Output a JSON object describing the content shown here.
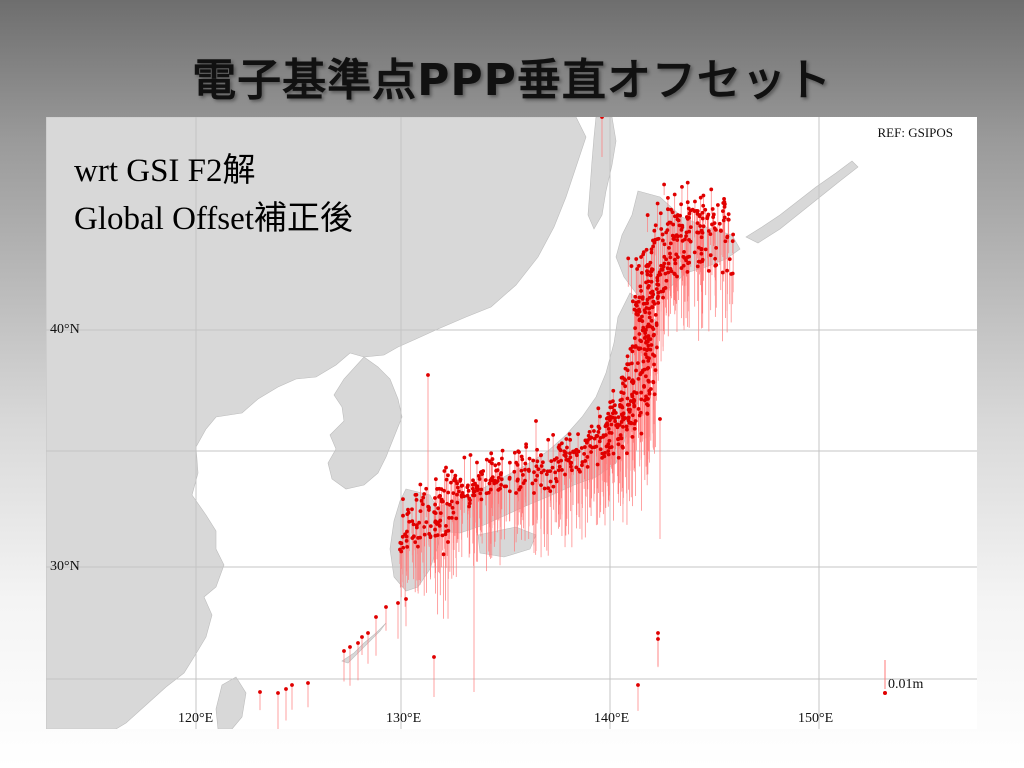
{
  "title": "電子基準点PPP垂直オフセット",
  "map": {
    "ref_label": "REF: GSIPOS",
    "annotation_line1": "wrt GSI F2解",
    "annotation_line2": "Global Offset補正後",
    "lat_labels": [
      "40°N",
      "30°N"
    ],
    "lon_labels": [
      "120°E",
      "130°E",
      "140°E",
      "150°E"
    ],
    "scale_label": "0.01m",
    "colors": {
      "land": "#d8d8d8",
      "sea": "#ffffff",
      "grid": "#c4c4c4",
      "point": "#e00000",
      "vector": "#ff7a7a"
    }
  }
}
